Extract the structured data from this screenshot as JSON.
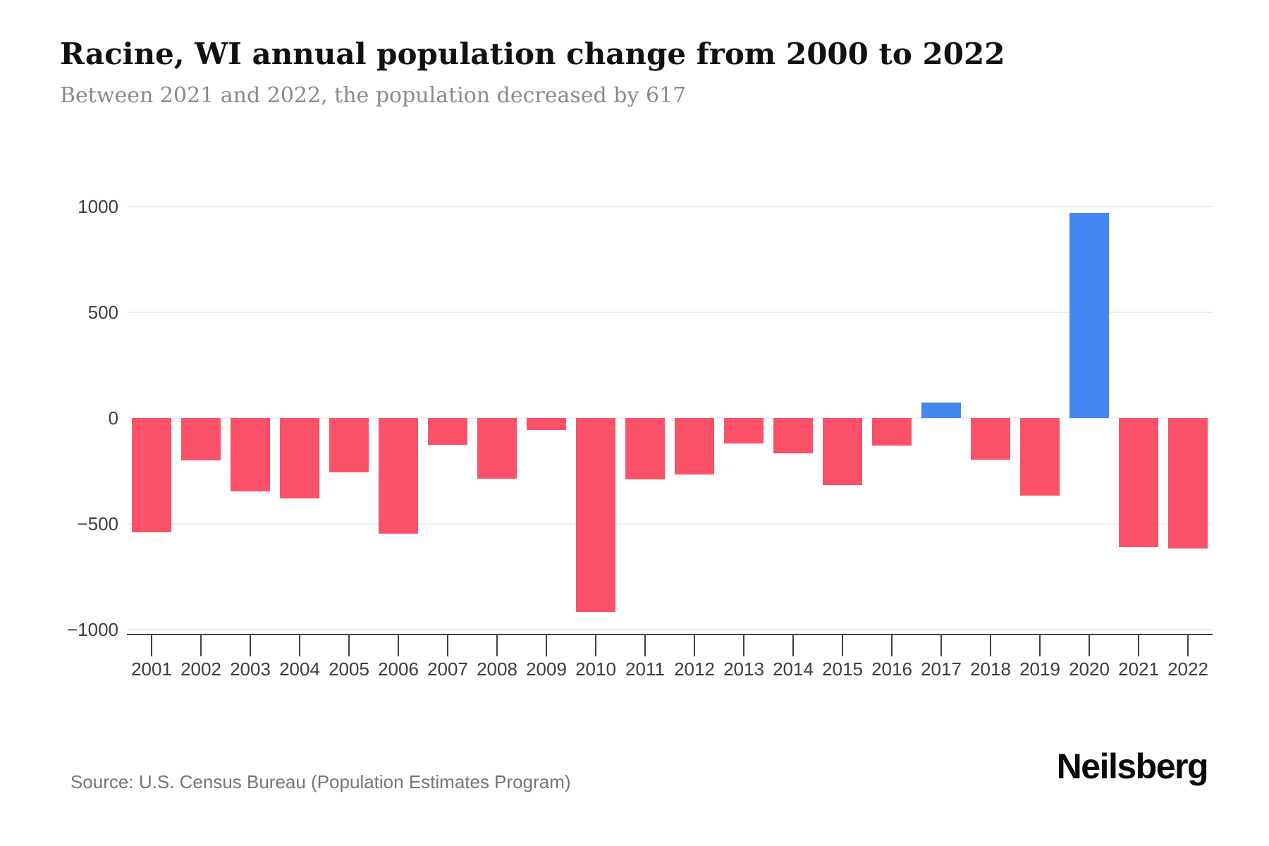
{
  "header": {
    "title": "Racine, WI annual population change from 2000 to 2022",
    "subtitle": "Between 2021 and 2022, the population decreased by 617"
  },
  "footer": {
    "source": "Source: U.S. Census Bureau (Population Estimates Program)",
    "brand": "Neilsberg"
  },
  "chart_data": {
    "type": "bar",
    "title": "Racine, WI annual population change from 2000 to 2022",
    "subtitle": "Between 2021 and 2022, the population decreased by 617",
    "categories": [
      "2001",
      "2002",
      "2003",
      "2004",
      "2005",
      "2006",
      "2007",
      "2008",
      "2009",
      "2010",
      "2011",
      "2012",
      "2013",
      "2014",
      "2015",
      "2016",
      "2017",
      "2018",
      "2019",
      "2020",
      "2021",
      "2022"
    ],
    "values": [
      -540,
      -200,
      -345,
      -380,
      -255,
      -545,
      -125,
      -285,
      -55,
      -915,
      -290,
      -265,
      -120,
      -165,
      -315,
      -130,
      75,
      -195,
      -365,
      970,
      -610,
      -617
    ],
    "xlabel": "",
    "ylabel": "",
    "ylim": [
      -1000,
      1000
    ],
    "yticks": [
      1000,
      500,
      0,
      -500,
      -1000
    ],
    "ytick_labels": [
      "1000",
      "500",
      "0",
      "−500",
      "−1000"
    ],
    "grid": true,
    "legend": "none",
    "colors": {
      "positive": "#4486EF",
      "negative": "#FB5169",
      "gridline": "#ededed",
      "axis": "#424242",
      "tick_text": "#3d3d3d"
    }
  }
}
